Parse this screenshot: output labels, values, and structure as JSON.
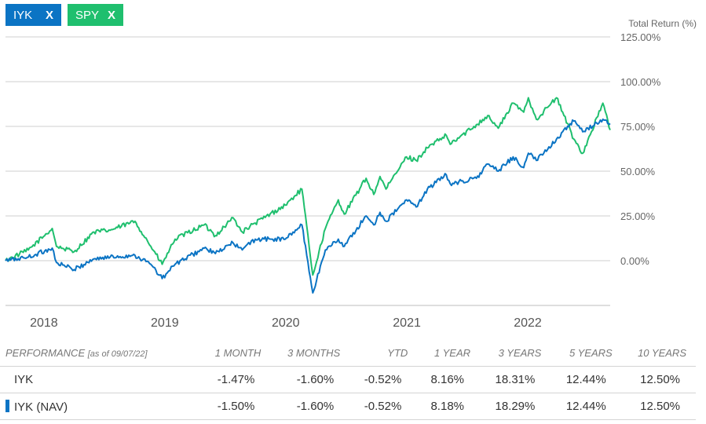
{
  "chips": [
    {
      "label": "IYK",
      "close": "X",
      "color": "#0b74c4"
    },
    {
      "label": "SPY",
      "close": "X",
      "color": "#1fbf6e"
    }
  ],
  "chart_data": {
    "type": "line",
    "ylabel": "Total Return (%)",
    "y_ticks": [
      "125.00%",
      "100.00%",
      "75.00%",
      "50.00%",
      "25.00%",
      "0.00%"
    ],
    "ylim": [
      -25,
      125
    ],
    "x_ticks": [
      "2018",
      "2019",
      "2020",
      "2021",
      "2022"
    ],
    "xlim": [
      "2017-09-07",
      "2022-09-07"
    ],
    "grid": true,
    "series": [
      {
        "name": "SPY",
        "color": "#1fbf6e",
        "x": [
          "2017-09-07",
          "2017-11-15",
          "2018-01-26",
          "2018-02-08",
          "2018-04-02",
          "2018-06-01",
          "2018-07-20",
          "2018-10-03",
          "2018-11-20",
          "2018-12-24",
          "2019-02-01",
          "2019-04-30",
          "2019-06-03",
          "2019-07-26",
          "2019-08-23",
          "2019-10-01",
          "2019-12-31",
          "2020-02-19",
          "2020-03-23",
          "2020-04-30",
          "2020-06-08",
          "2020-06-26",
          "2020-08-31",
          "2020-09-23",
          "2020-10-12",
          "2020-10-30",
          "2020-12-31",
          "2021-01-29",
          "2021-03-04",
          "2021-04-30",
          "2021-05-12",
          "2021-07-30",
          "2021-09-02",
          "2021-10-04",
          "2021-11-18",
          "2021-12-20",
          "2022-01-03",
          "2022-01-27",
          "2022-03-29",
          "2022-05-20",
          "2022-06-16",
          "2022-08-16",
          "2022-09-07"
        ],
        "values": [
          0,
          6,
          18,
          8,
          5,
          16,
          17,
          22,
          8,
          -2,
          12,
          20,
          14,
          24,
          16,
          21,
          31,
          40,
          -8,
          18,
          34,
          26,
          46,
          37,
          47,
          40,
          58,
          56,
          63,
          70,
          65,
          76,
          81,
          74,
          88,
          83,
          91,
          79,
          91,
          68,
          60,
          88,
          73
        ]
      },
      {
        "name": "IYK",
        "color": "#0b74c4",
        "x": [
          "2017-09-07",
          "2017-11-15",
          "2018-01-26",
          "2018-02-08",
          "2018-04-02",
          "2018-06-01",
          "2018-07-20",
          "2018-10-03",
          "2018-11-20",
          "2018-12-24",
          "2019-02-01",
          "2019-04-30",
          "2019-06-03",
          "2019-07-26",
          "2019-08-23",
          "2019-10-01",
          "2019-12-31",
          "2020-02-19",
          "2020-03-23",
          "2020-04-30",
          "2020-06-08",
          "2020-06-26",
          "2020-08-31",
          "2020-09-23",
          "2020-10-12",
          "2020-10-30",
          "2020-12-31",
          "2021-01-29",
          "2021-03-04",
          "2021-04-30",
          "2021-05-12",
          "2021-07-30",
          "2021-09-02",
          "2021-10-04",
          "2021-11-18",
          "2021-12-20",
          "2022-01-03",
          "2022-01-27",
          "2022-03-29",
          "2022-05-20",
          "2022-06-16",
          "2022-08-16",
          "2022-09-07"
        ],
        "values": [
          0,
          2,
          7,
          -1,
          -5,
          1,
          2,
          3,
          -2,
          -10,
          -2,
          7,
          4,
          10,
          6,
          12,
          12,
          20,
          -18,
          6,
          12,
          8,
          25,
          20,
          27,
          22,
          34,
          30,
          40,
          48,
          43,
          46,
          54,
          50,
          58,
          52,
          60,
          56,
          68,
          78,
          72,
          79,
          76
        ]
      }
    ]
  },
  "performance": {
    "header": {
      "label": "PERFORMANCE",
      "as_of": "[as of 09/07/22]",
      "cols": [
        "1 MONTH",
        "3 MONTHS",
        "YTD",
        "1 YEAR",
        "3 YEARS",
        "5 YEARS",
        "10 YEARS"
      ]
    },
    "rows": [
      {
        "name": "IYK",
        "values": [
          "-1.47%",
          "-1.60%",
          "-0.52%",
          "8.16%",
          "18.31%",
          "12.44%",
          "12.50%"
        ]
      },
      {
        "name": "IYK (NAV)",
        "values": [
          "-1.50%",
          "-1.60%",
          "-0.52%",
          "8.18%",
          "18.29%",
          "12.44%",
          "12.50%"
        ],
        "marker_color": "#0b74c4"
      }
    ]
  }
}
